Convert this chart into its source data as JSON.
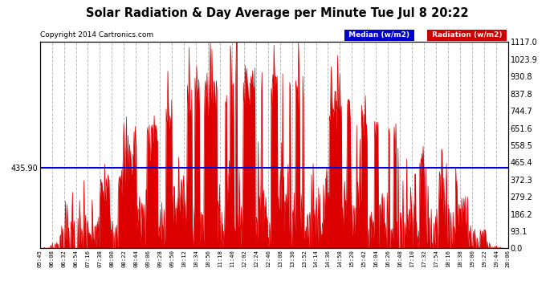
{
  "title": "Solar Radiation & Day Average per Minute Tue Jul 8 20:22",
  "copyright": "Copyright 2014 Cartronics.com",
  "median_value": 435.9,
  "y_max": 1117.0,
  "y_min": 0.0,
  "y_ticks_right": [
    0.0,
    93.1,
    186.2,
    279.2,
    372.3,
    465.4,
    558.5,
    651.6,
    744.7,
    837.8,
    930.8,
    1023.9,
    1117.0
  ],
  "legend_median_label": "Median (w/m2)",
  "legend_radiation_label": "Radiation (w/m2)",
  "median_color": "#0000dd",
  "radiation_color": "#dd0000",
  "background_color": "#ffffff",
  "grid_color": "#bbbbbb",
  "x_labels": [
    "05:45",
    "06:08",
    "06:32",
    "06:54",
    "07:16",
    "07:38",
    "08:00",
    "08:22",
    "08:44",
    "09:06",
    "09:28",
    "09:50",
    "10:12",
    "10:34",
    "10:56",
    "11:18",
    "11:40",
    "12:02",
    "12:24",
    "12:46",
    "13:08",
    "13:30",
    "13:52",
    "14:14",
    "14:36",
    "14:58",
    "15:20",
    "15:42",
    "16:04",
    "16:26",
    "16:48",
    "17:10",
    "17:32",
    "17:54",
    "18:16",
    "18:38",
    "19:00",
    "19:22",
    "19:44",
    "20:06"
  ]
}
